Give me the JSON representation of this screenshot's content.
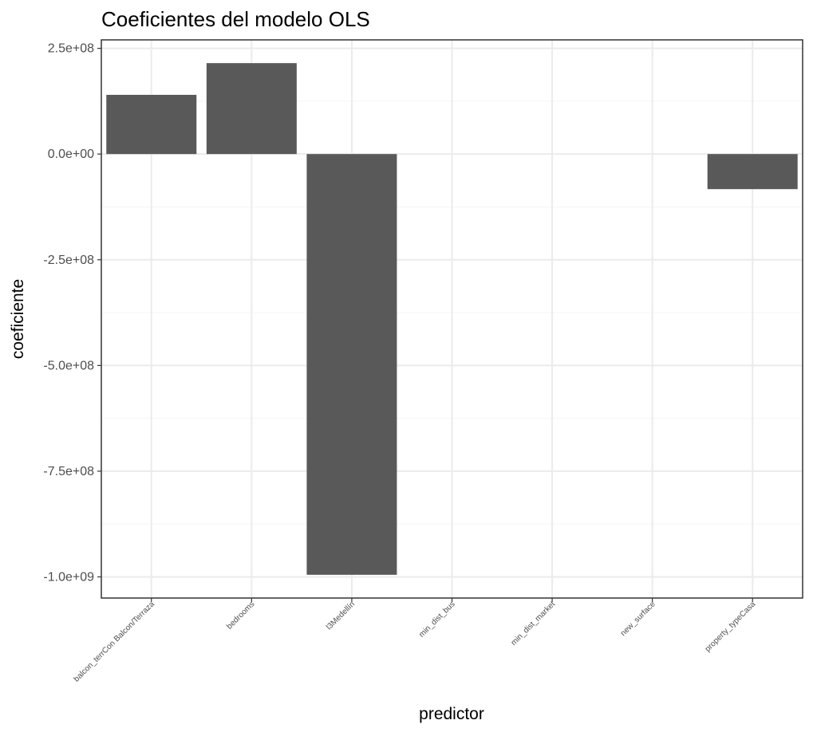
{
  "chart_data": {
    "type": "bar",
    "title": "Coeficientes del modelo OLS",
    "xlabel": "predictor",
    "ylabel": "coeficiente",
    "categories": [
      "balcon_terrCon Balcon/Terraza",
      "bedrooms",
      "l3Medellín",
      "min_dist_bus",
      "min_dist_market",
      "new_surface",
      "property_typeCasa"
    ],
    "values": [
      140000000,
      215000000,
      -995000000,
      0,
      0,
      0,
      -83000000
    ],
    "ylim": [
      -1050000000,
      270000000
    ],
    "yticks": [
      -1000000000,
      -750000000,
      -500000000,
      -250000000,
      0,
      250000000
    ],
    "ytick_labels": [
      "-1.0e+09",
      "-7.5e+08",
      "-5.0e+08",
      "-2.5e+08",
      "0.0e+00",
      "2.5e+08"
    ],
    "grid": true,
    "theme": "bw",
    "colors": {
      "bar": "#595959",
      "grid_major": "#ebebeb",
      "grid_minor": "#f5f5f5",
      "panel_border": "#333333",
      "tick_text": "#4d4d4d"
    }
  }
}
